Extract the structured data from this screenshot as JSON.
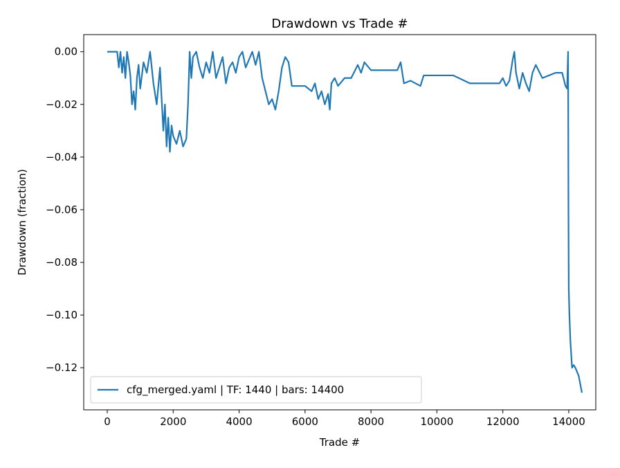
{
  "chart_data": {
    "type": "line",
    "title": "Drawdown vs Trade #",
    "xlabel": "Trade #",
    "ylabel": "Drawdown (fraction)",
    "x": [
      0,
      300,
      350,
      400,
      450,
      500,
      550,
      600,
      650,
      700,
      750,
      800,
      850,
      900,
      950,
      1000,
      1100,
      1200,
      1300,
      1400,
      1500,
      1600,
      1700,
      1750,
      1800,
      1850,
      1900,
      1950,
      2000,
      2100,
      2200,
      2300,
      2400,
      2450,
      2500,
      2550,
      2600,
      2700,
      2800,
      2900,
      3000,
      3100,
      3200,
      3300,
      3400,
      3500,
      3600,
      3700,
      3800,
      3900,
      4000,
      4100,
      4200,
      4300,
      4400,
      4500,
      4600,
      4700,
      4800,
      4900,
      5000,
      5100,
      5200,
      5300,
      5400,
      5500,
      5600,
      6000,
      6200,
      6300,
      6400,
      6500,
      6600,
      6700,
      6750,
      6800,
      6900,
      7000,
      7200,
      7400,
      7600,
      7700,
      7800,
      8000,
      8500,
      8800,
      8900,
      9000,
      9200,
      9500,
      9600,
      10000,
      10500,
      11000,
      11500,
      11900,
      12000,
      12100,
      12200,
      12300,
      12350,
      12400,
      12500,
      12600,
      12700,
      12800,
      12900,
      13000,
      13200,
      13400,
      13600,
      13800,
      13900,
      13950,
      13980,
      13990,
      14000,
      14020,
      14050,
      14100,
      14150,
      14200,
      14300,
      14400
    ],
    "series": [
      {
        "name": "cfg_merged.yaml | TF: 1440 | bars: 14400",
        "color": "#1f77b4",
        "values": [
          0,
          0,
          -0.006,
          0,
          -0.008,
          -0.002,
          -0.01,
          0,
          -0.004,
          -0.009,
          -0.02,
          -0.015,
          -0.022,
          -0.01,
          -0.005,
          -0.014,
          -0.004,
          -0.008,
          0,
          -0.012,
          -0.02,
          -0.006,
          -0.03,
          -0.02,
          -0.036,
          -0.025,
          -0.038,
          -0.028,
          -0.032,
          -0.035,
          -0.03,
          -0.036,
          -0.033,
          -0.02,
          0,
          -0.01,
          -0.002,
          0,
          -0.006,
          -0.01,
          -0.004,
          -0.008,
          0,
          -0.01,
          -0.006,
          -0.002,
          -0.012,
          -0.006,
          -0.004,
          -0.008,
          -0.002,
          0,
          -0.006,
          -0.003,
          0,
          -0.005,
          0,
          -0.01,
          -0.015,
          -0.02,
          -0.018,
          -0.022,
          -0.015,
          -0.006,
          -0.002,
          -0.004,
          -0.013,
          -0.013,
          -0.015,
          -0.012,
          -0.018,
          -0.015,
          -0.02,
          -0.016,
          -0.022,
          -0.012,
          -0.01,
          -0.013,
          -0.01,
          -0.01,
          -0.005,
          -0.008,
          -0.004,
          -0.007,
          -0.007,
          -0.007,
          -0.004,
          -0.012,
          -0.011,
          -0.013,
          -0.009,
          -0.009,
          -0.009,
          -0.012,
          -0.012,
          -0.012,
          -0.01,
          -0.013,
          -0.011,
          -0.003,
          0,
          -0.008,
          -0.014,
          -0.008,
          -0.012,
          -0.015,
          -0.008,
          -0.005,
          -0.01,
          -0.009,
          -0.008,
          -0.008,
          -0.013,
          -0.014,
          0,
          -0.056,
          -0.09,
          -0.1,
          -0.11,
          -0.12,
          -0.119,
          -0.12,
          -0.123,
          -0.1295
        ]
      }
    ],
    "xlim": [
      -714,
      14820
    ],
    "xticks": [
      0,
      2000,
      4000,
      6000,
      8000,
      10000,
      12000,
      14000
    ],
    "ylim": [
      -0.136,
      0.0065
    ],
    "yticks": [
      {
        "value": 0,
        "label": "0.00"
      },
      {
        "value": -0.02,
        "label": "−0.02"
      },
      {
        "value": -0.04,
        "label": "−0.04"
      },
      {
        "value": -0.06,
        "label": "−0.06"
      },
      {
        "value": -0.08,
        "label": "−0.08"
      },
      {
        "value": -0.1,
        "label": "−0.10"
      },
      {
        "value": -0.12,
        "label": "−0.12"
      }
    ],
    "legend": "lower left",
    "grid": false
  }
}
